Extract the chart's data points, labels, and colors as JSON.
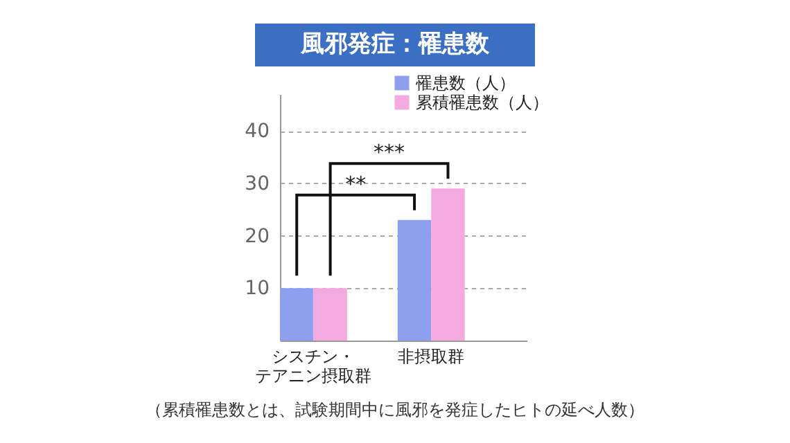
{
  "chart_data": {
    "type": "bar",
    "title": "風邪発症：罹患数",
    "categories": [
      "シスチン・テアニン摂取群",
      "非摂取群"
    ],
    "series": [
      {
        "name": "罹患数（人）",
        "color": "#8f9ff0",
        "values": [
          10,
          23
        ]
      },
      {
        "name": "累積罹患数（人）",
        "color": "#f4a9e0",
        "values": [
          10,
          29
        ]
      }
    ],
    "ylim": [
      0,
      47
    ],
    "yticks": [
      10,
      20,
      30,
      40
    ],
    "grid": "y",
    "legend": "top right",
    "annotations": [
      "**",
      "***",
      "（累積罹患数とは、試験期間中に風邪を発症したヒトの延べ人数）"
    ]
  }
}
